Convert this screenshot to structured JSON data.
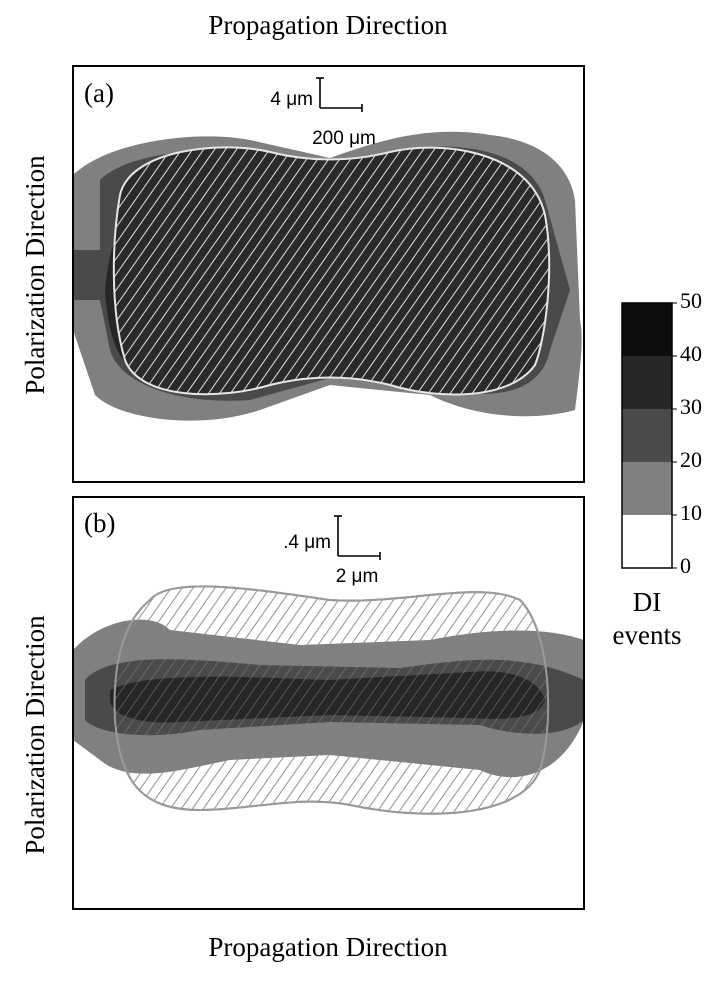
{
  "top_label": "Propagation Direction",
  "bottom_label": "Propagation Direction",
  "panels": [
    {
      "label": "(a)",
      "y_axis_label": "Polarization Direction",
      "scale_vertical": "4 μm",
      "scale_horizontal": "200 μm"
    },
    {
      "label": "(b)",
      "y_axis_label": "Polarization Direction",
      "scale_vertical": ".4 μm",
      "scale_horizontal": "2 μm"
    }
  ],
  "colorbar": {
    "title": "DI",
    "subtitle": "events",
    "ticks": [
      0,
      10,
      20,
      30,
      40,
      50
    ],
    "colors": [
      "#ffffff",
      "#808080",
      "#4a4a4a",
      "#262626",
      "#0d0d0d"
    ]
  }
}
